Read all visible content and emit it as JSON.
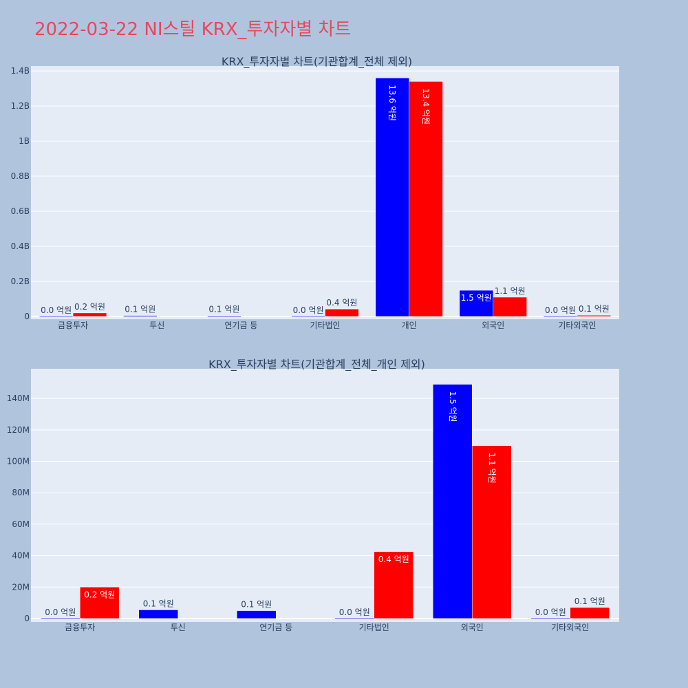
{
  "page": {
    "title": "2022-03-22 NI스틸 KRX_투자자별 차트"
  },
  "colors": {
    "background": "#b0c4de",
    "plot_bg": "#e5ecf6",
    "title": "#e8475c",
    "buy": "#0000ff",
    "sell": "#ff0000"
  },
  "chart_data": [
    {
      "type": "bar",
      "title": "KRX_투자자별 차트(기관합계_전체 제외)",
      "categories": [
        "금융투자",
        "투신",
        "연기금 등",
        "기타법인",
        "개인",
        "외국인",
        "기타외국인"
      ],
      "ylim": [
        0,
        1420000000
      ],
      "yticks": [
        0,
        200000000,
        400000000,
        600000000,
        800000000,
        1000000000,
        1200000000,
        1400000000
      ],
      "ytick_labels": [
        "0",
        "0.2B",
        "0.4B",
        "0.6B",
        "0.8B",
        "1B",
        "1.2B",
        "1.4B"
      ],
      "grid": true,
      "series": [
        {
          "color": "#0000ff",
          "values": [
            0,
            5500000,
            5000000,
            0,
            1360000000,
            149000000,
            0
          ],
          "labels": [
            "0.0 억원",
            "0.1 억원",
            "0.1 억원",
            "0.0 억원",
            "13.6 억원",
            "1.5 억원",
            "0.0 억원"
          ]
        },
        {
          "color": "#ff0000",
          "values": [
            20000000,
            0,
            0,
            42500000,
            1340000000,
            110000000,
            7000000
          ],
          "labels": [
            "0.2 억원",
            "",
            "",
            "0.4 억원",
            "13.4 억원",
            "1.1 억원",
            "0.1 억원"
          ]
        }
      ]
    },
    {
      "type": "bar",
      "title": "KRX_투자자별 차트(기관합계_전체_개인 제외)",
      "categories": [
        "금융투자",
        "투신",
        "연기금 등",
        "기타법인",
        "외국인",
        "기타외국인"
      ],
      "ylim": [
        0,
        158000000
      ],
      "yticks": [
        0,
        20000000,
        40000000,
        60000000,
        80000000,
        100000000,
        120000000,
        140000000
      ],
      "ytick_labels": [
        "0",
        "20M",
        "40M",
        "60M",
        "80M",
        "100M",
        "120M",
        "140M"
      ],
      "grid": true,
      "series": [
        {
          "color": "#0000ff",
          "values": [
            0,
            5500000,
            5000000,
            0,
            149000000,
            0
          ],
          "labels": [
            "0.0 억원",
            "0.1 억원",
            "0.1 억원",
            "0.0 억원",
            "1.5 억원",
            "0.0 억원"
          ]
        },
        {
          "color": "#ff0000",
          "values": [
            20000000,
            0,
            0,
            42500000,
            110000000,
            7000000
          ],
          "labels": [
            "0.2 억원",
            "",
            "",
            "0.4 억원",
            "1.1 억원",
            "0.1 억원"
          ]
        }
      ]
    }
  ]
}
